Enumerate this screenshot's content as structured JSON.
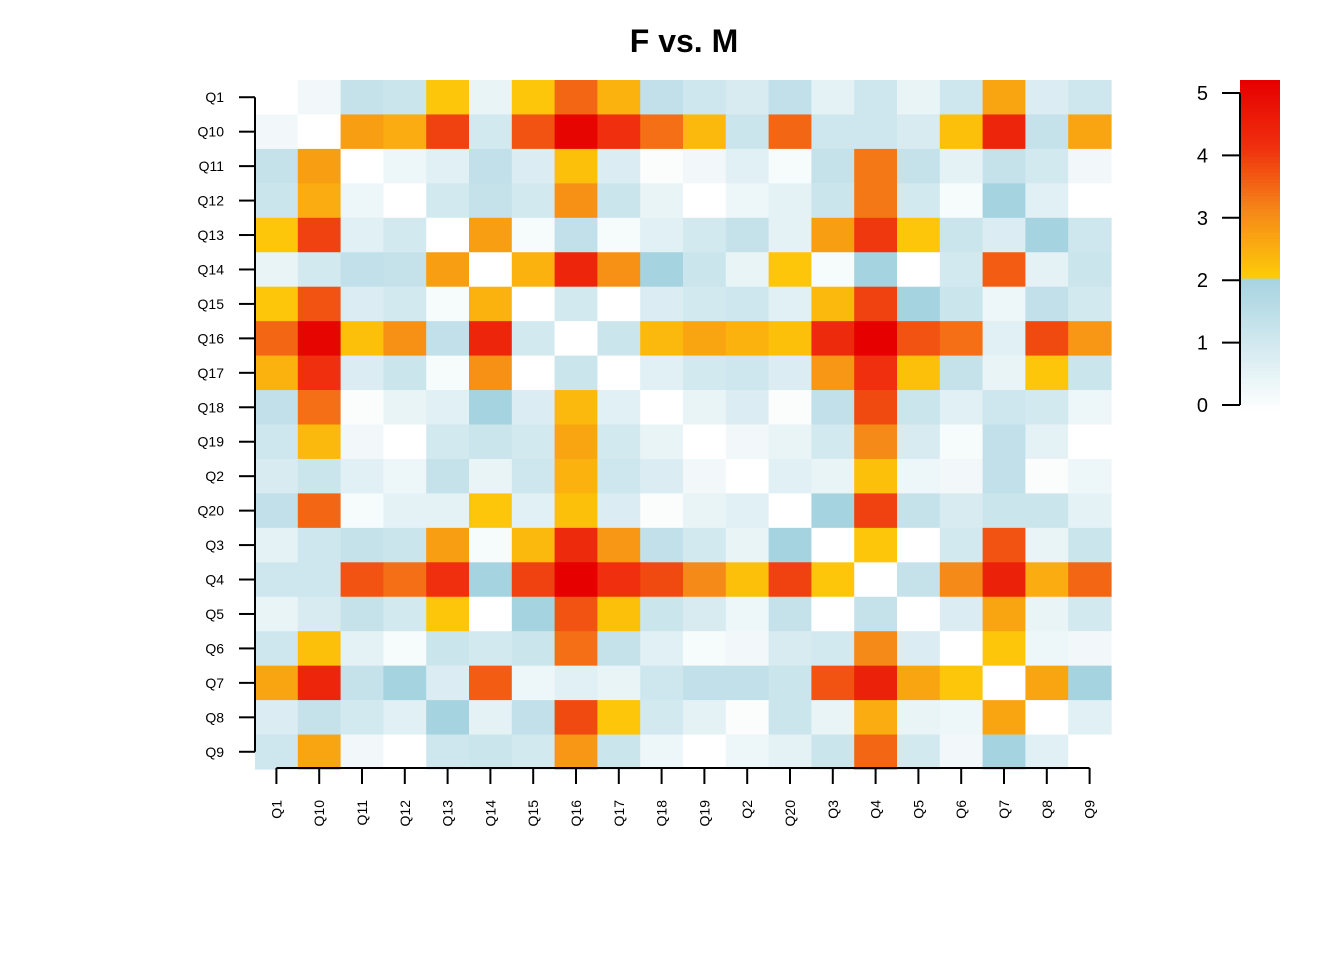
{
  "chart_data": {
    "type": "heatmap",
    "title": "F vs. M",
    "xlabel": "",
    "ylabel": "",
    "rows": [
      "Q1",
      "Q10",
      "Q11",
      "Q12",
      "Q13",
      "Q14",
      "Q15",
      "Q16",
      "Q17",
      "Q18",
      "Q19",
      "Q2",
      "Q20",
      "Q3",
      "Q4",
      "Q5",
      "Q6",
      "Q7",
      "Q8",
      "Q9"
    ],
    "columns": [
      "Q1",
      "Q10",
      "Q11",
      "Q12",
      "Q13",
      "Q14",
      "Q15",
      "Q16",
      "Q17",
      "Q18",
      "Q19",
      "Q2",
      "Q20",
      "Q3",
      "Q4",
      "Q5",
      "Q6",
      "Q7",
      "Q8",
      "Q9"
    ],
    "values": [
      [
        0.0,
        0.3,
        1.3,
        1.2,
        2.1,
        0.5,
        2.1,
        3.4,
        2.4,
        1.4,
        1.1,
        0.9,
        1.4,
        0.6,
        1.1,
        0.5,
        1.1,
        2.6,
        0.8,
        1.1
      ],
      [
        0.3,
        0.0,
        2.7,
        2.5,
        3.8,
        1.0,
        3.6,
        4.9,
        4.0,
        3.3,
        2.3,
        1.2,
        3.4,
        1.1,
        1.1,
        0.9,
        2.2,
        4.2,
        1.3,
        2.6
      ],
      [
        1.3,
        2.7,
        0.0,
        0.4,
        0.7,
        1.4,
        0.8,
        2.2,
        0.8,
        0.1,
        0.3,
        0.7,
        0.2,
        1.3,
        3.2,
        1.3,
        0.6,
        1.3,
        1.0,
        0.3
      ],
      [
        1.2,
        2.5,
        0.4,
        0.0,
        1.0,
        1.3,
        1.0,
        2.9,
        1.2,
        0.5,
        0.0,
        0.4,
        0.6,
        1.2,
        3.2,
        1.0,
        0.2,
        2.0,
        0.7,
        0.0
      ],
      [
        2.1,
        3.8,
        0.7,
        1.0,
        0.0,
        2.7,
        0.2,
        1.4,
        0.2,
        0.7,
        1.0,
        1.3,
        0.6,
        2.7,
        3.9,
        2.1,
        1.2,
        0.8,
        2.0,
        1.1
      ],
      [
        0.5,
        1.0,
        1.4,
        1.3,
        2.7,
        0.0,
        2.4,
        4.2,
        2.9,
        2.0,
        1.2,
        0.5,
        2.1,
        0.2,
        2.0,
        0.0,
        1.0,
        3.5,
        0.6,
        1.2
      ],
      [
        2.1,
        3.6,
        0.8,
        1.0,
        0.2,
        2.4,
        0.0,
        1.0,
        0.0,
        0.8,
        1.0,
        1.1,
        0.7,
        2.3,
        3.8,
        2.0,
        1.2,
        0.4,
        1.4,
        1.0
      ],
      [
        3.4,
        4.9,
        2.2,
        2.9,
        1.4,
        4.2,
        1.0,
        0.0,
        1.2,
        2.3,
        2.6,
        2.4,
        2.2,
        4.1,
        5.0,
        3.6,
        3.3,
        0.7,
        3.7,
        2.8
      ],
      [
        2.4,
        4.0,
        0.8,
        1.2,
        0.2,
        2.9,
        0.0,
        1.2,
        0.0,
        0.7,
        1.0,
        1.1,
        0.8,
        2.8,
        4.0,
        2.2,
        1.3,
        0.5,
        2.1,
        1.2
      ],
      [
        1.4,
        3.3,
        0.1,
        0.5,
        0.7,
        2.0,
        0.8,
        2.3,
        0.7,
        0.0,
        0.5,
        0.8,
        0.1,
        1.4,
        3.7,
        1.2,
        0.7,
        1.1,
        1.0,
        0.4
      ],
      [
        1.1,
        2.3,
        0.3,
        0.0,
        1.0,
        1.2,
        1.0,
        2.6,
        1.0,
        0.5,
        0.0,
        0.3,
        0.5,
        1.0,
        3.0,
        0.9,
        0.2,
        1.4,
        0.6,
        0.0
      ],
      [
        0.9,
        1.2,
        0.7,
        0.4,
        1.3,
        0.5,
        1.1,
        2.4,
        1.1,
        0.8,
        0.3,
        0.0,
        0.7,
        0.5,
        2.2,
        0.4,
        0.3,
        1.4,
        0.1,
        0.4
      ],
      [
        1.4,
        3.4,
        0.2,
        0.6,
        0.6,
        2.1,
        0.7,
        2.2,
        0.8,
        0.1,
        0.5,
        0.7,
        0.0,
        2.0,
        3.8,
        1.3,
        0.9,
        1.2,
        1.2,
        0.6
      ],
      [
        0.6,
        1.1,
        1.3,
        1.2,
        2.7,
        0.2,
        2.3,
        4.1,
        2.8,
        1.4,
        1.0,
        0.5,
        2.0,
        0.0,
        2.1,
        0.0,
        1.0,
        3.6,
        0.5,
        1.2
      ],
      [
        1.1,
        1.1,
        3.6,
        3.3,
        4.0,
        2.0,
        3.8,
        5.0,
        4.0,
        3.7,
        3.0,
        2.2,
        3.8,
        2.1,
        0.0,
        1.3,
        3.0,
        4.3,
        2.5,
        3.4
      ],
      [
        0.5,
        0.9,
        1.3,
        1.0,
        2.1,
        0.0,
        2.0,
        3.6,
        2.2,
        1.2,
        0.9,
        0.4,
        1.3,
        0.0,
        1.3,
        0.0,
        0.8,
        2.6,
        0.5,
        1.0
      ],
      [
        1.1,
        2.2,
        0.6,
        0.2,
        1.2,
        1.0,
        1.2,
        3.3,
        1.3,
        0.7,
        0.2,
        0.3,
        0.9,
        1.0,
        3.0,
        0.8,
        0.0,
        2.1,
        0.4,
        0.3
      ],
      [
        2.6,
        4.2,
        1.3,
        2.0,
        0.8,
        3.5,
        0.4,
        0.7,
        0.5,
        1.1,
        1.4,
        1.4,
        1.2,
        3.6,
        4.3,
        2.6,
        2.1,
        0.0,
        2.6,
        2.0
      ],
      [
        0.8,
        1.3,
        1.0,
        0.7,
        2.0,
        0.6,
        1.4,
        3.7,
        2.1,
        1.0,
        0.6,
        0.1,
        1.2,
        0.5,
        2.5,
        0.5,
        0.4,
        2.6,
        0.0,
        0.7
      ],
      [
        1.1,
        2.6,
        0.3,
        0.0,
        1.1,
        1.2,
        1.0,
        2.8,
        1.2,
        0.4,
        0.0,
        0.4,
        0.6,
        1.2,
        3.4,
        1.0,
        0.3,
        2.0,
        0.7,
        0.0
      ]
    ],
    "color_scale": {
      "min": 0,
      "max": 5,
      "ticks": [
        "0",
        "1",
        "2",
        "3",
        "4",
        "5"
      ],
      "stops": [
        {
          "value": 0,
          "color": "#ffffff"
        },
        {
          "value": 2,
          "color": "#a6d3e0"
        },
        {
          "value": 2.001,
          "color": "#fecd08"
        },
        {
          "value": 3,
          "color": "#f68a18"
        },
        {
          "value": 4,
          "color": "#ef2f0e"
        },
        {
          "value": 5,
          "color": "#e60000"
        }
      ],
      "legend_position": "right"
    }
  }
}
